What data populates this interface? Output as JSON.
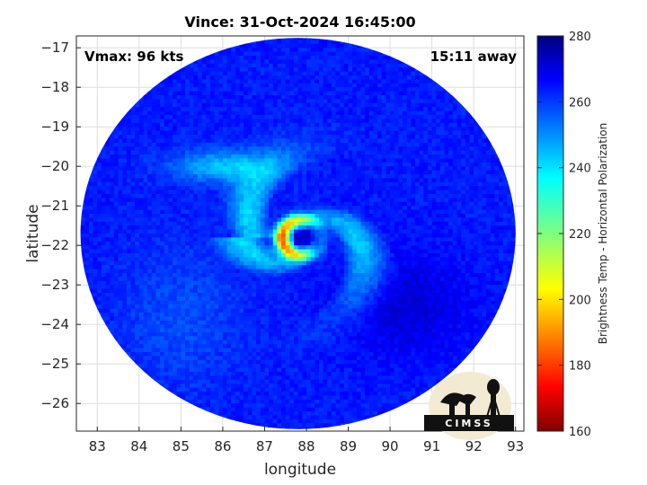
{
  "chart_data": {
    "type": "heatmap",
    "title": "Vince: 31-Oct-2024 16:45:00",
    "xlabel": "longitude",
    "ylabel": "latitude",
    "xlim": [
      82.5,
      93.2
    ],
    "ylim": [
      -26.7,
      -16.7
    ],
    "xticks": [
      83,
      84,
      85,
      86,
      87,
      88,
      89,
      90,
      91,
      92,
      93
    ],
    "yticks": [
      -17,
      -18,
      -19,
      -20,
      -21,
      -22,
      -23,
      -24,
      -25,
      -26
    ],
    "grid": true,
    "annotations": {
      "vmax": "Vmax: 96 kts",
      "time_away": "15:11 away"
    },
    "colorbar": {
      "label": "Brightness Temp - Horizontal Polarization",
      "min": 160,
      "max": 280,
      "ticks": [
        160,
        180,
        200,
        220,
        240,
        260,
        280
      ],
      "colormap": "jet",
      "placement": "right"
    },
    "storm_center": {
      "lon": 87.9,
      "lat": -21.8
    },
    "swath_center": {
      "lon": 87.8,
      "lat": -21.7
    },
    "background_value": 262
  },
  "logo": {
    "text": "CIMSS"
  }
}
